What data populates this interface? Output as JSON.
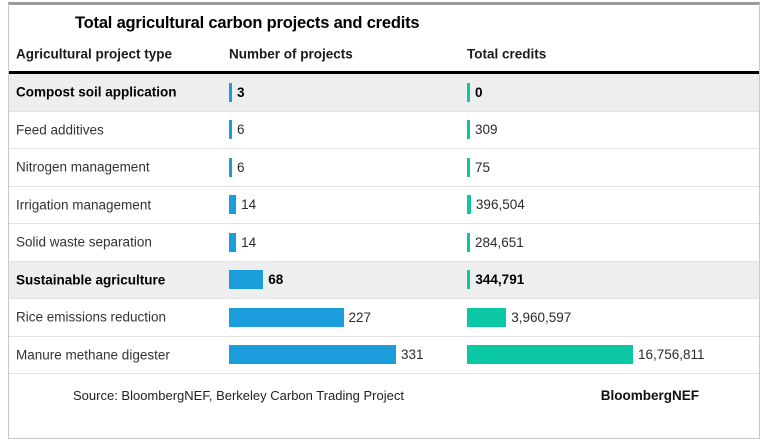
{
  "title": "Total agricultural carbon projects and credits",
  "columns": {
    "type": "Agricultural project type",
    "projects": "Number of projects",
    "credits": "Total credits"
  },
  "colors": {
    "projects_bar": "#1b9ddb",
    "credits_bar": "#0cc7a4",
    "highlight_row_bg": "#eeeeee"
  },
  "rows": [
    {
      "label": "Compost soil application",
      "projects": 3,
      "projects_label": "3",
      "credits": 0,
      "credits_label": "0",
      "emphasis": true
    },
    {
      "label": "Feed additives",
      "projects": 6,
      "projects_label": "6",
      "credits": 309,
      "credits_label": "309",
      "emphasis": false
    },
    {
      "label": "Nitrogen management",
      "projects": 6,
      "projects_label": "6",
      "credits": 75,
      "credits_label": "75",
      "emphasis": false
    },
    {
      "label": "Irrigation management",
      "projects": 14,
      "projects_label": "14",
      "credits": 396504,
      "credits_label": "396,504",
      "emphasis": false
    },
    {
      "label": "Solid waste separation",
      "projects": 14,
      "projects_label": "14",
      "credits": 284651,
      "credits_label": "284,651",
      "emphasis": false
    },
    {
      "label": "Sustainable agriculture",
      "projects": 68,
      "projects_label": "68",
      "credits": 344791,
      "credits_label": "344,791",
      "emphasis": true
    },
    {
      "label": "Rice emissions reduction",
      "projects": 227,
      "projects_label": "227",
      "credits": 3960597,
      "credits_label": "3,960,597",
      "emphasis": false
    },
    {
      "label": "Manure methane digester",
      "projects": 331,
      "projects_label": "331",
      "credits": 16756811,
      "credits_label": "16,756,811",
      "emphasis": false
    }
  ],
  "footer": {
    "source": "Source: BloombergNEF, Berkeley Carbon Trading Project",
    "brand": "BloombergNEF"
  },
  "chart_data": {
    "type": "bar",
    "orientation": "horizontal",
    "title": "Total agricultural carbon projects and credits",
    "categories": [
      "Compost soil application",
      "Feed additives",
      "Nitrogen management",
      "Irrigation management",
      "Solid waste separation",
      "Sustainable agriculture",
      "Rice emissions reduction",
      "Manure methane digester"
    ],
    "series": [
      {
        "name": "Number of projects",
        "values": [
          3,
          6,
          6,
          14,
          14,
          68,
          227,
          331
        ],
        "color": "#1b9ddb"
      },
      {
        "name": "Total credits",
        "values": [
          0,
          309,
          75,
          396504,
          284651,
          344791,
          3960597,
          16756811
        ],
        "color": "#0cc7a4"
      }
    ],
    "value_labels": true,
    "grid": false,
    "legend_position": "column-headers",
    "emphasized_categories": [
      "Compost soil application",
      "Sustainable agriculture"
    ],
    "source_note": "Source: BloombergNEF, Berkeley Carbon Trading Project"
  }
}
